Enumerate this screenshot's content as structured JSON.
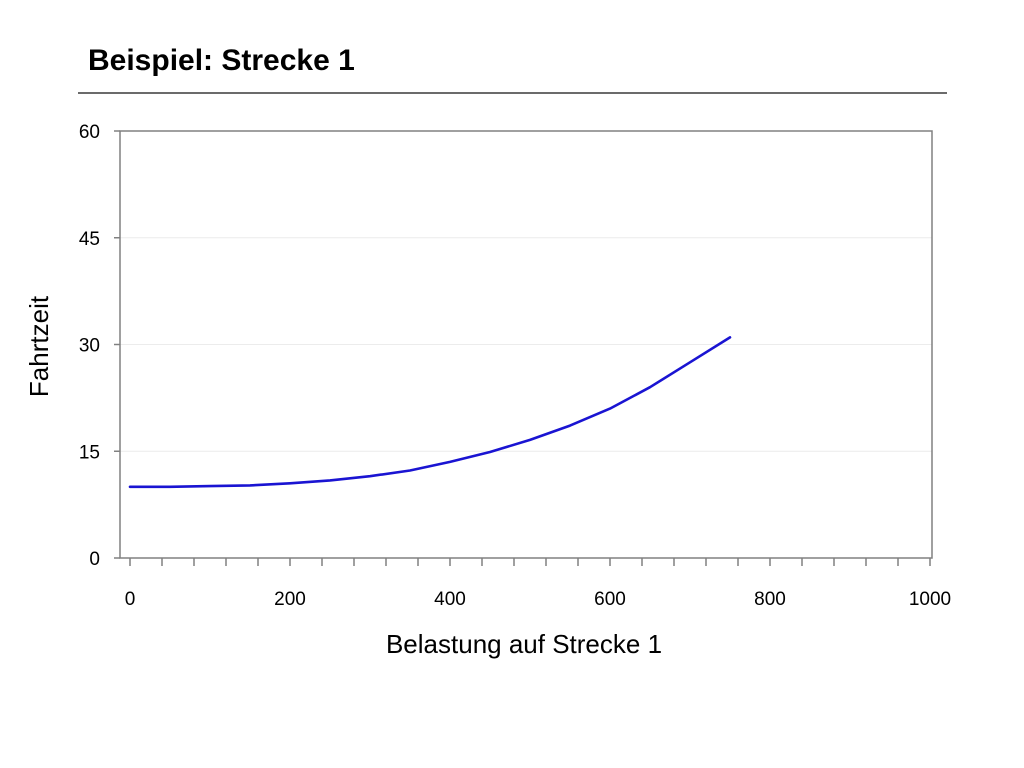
{
  "slide": {
    "title": "Beispiel: Strecke 1"
  },
  "chart_data": {
    "type": "line",
    "title": "",
    "xlabel": "Belastung auf Strecke 1",
    "ylabel": "Fahrtzeit",
    "xlim": [
      0,
      1000
    ],
    "ylim": [
      0,
      60
    ],
    "x_ticks": [
      0,
      200,
      400,
      600,
      800,
      1000
    ],
    "x_tick_labels": [
      "0",
      "200",
      "400",
      "600",
      "800",
      "1000"
    ],
    "y_ticks": [
      0,
      15,
      30,
      45,
      60
    ],
    "y_tick_labels": [
      "0",
      "15",
      "30",
      "45",
      "60"
    ],
    "x_minor_step": 40,
    "grid": true,
    "legend": "none",
    "series": [
      {
        "color": "#1a14d2",
        "x": [
          0,
          50,
          100,
          150,
          200,
          250,
          300,
          350,
          400,
          450,
          500,
          550,
          600,
          650,
          700,
          750
        ],
        "y": [
          10.0,
          10.0,
          10.1,
          10.2,
          10.5,
          10.9,
          11.5,
          12.3,
          13.5,
          14.9,
          16.6,
          18.6,
          21.0,
          24.0,
          27.5,
          31.0
        ]
      }
    ]
  }
}
